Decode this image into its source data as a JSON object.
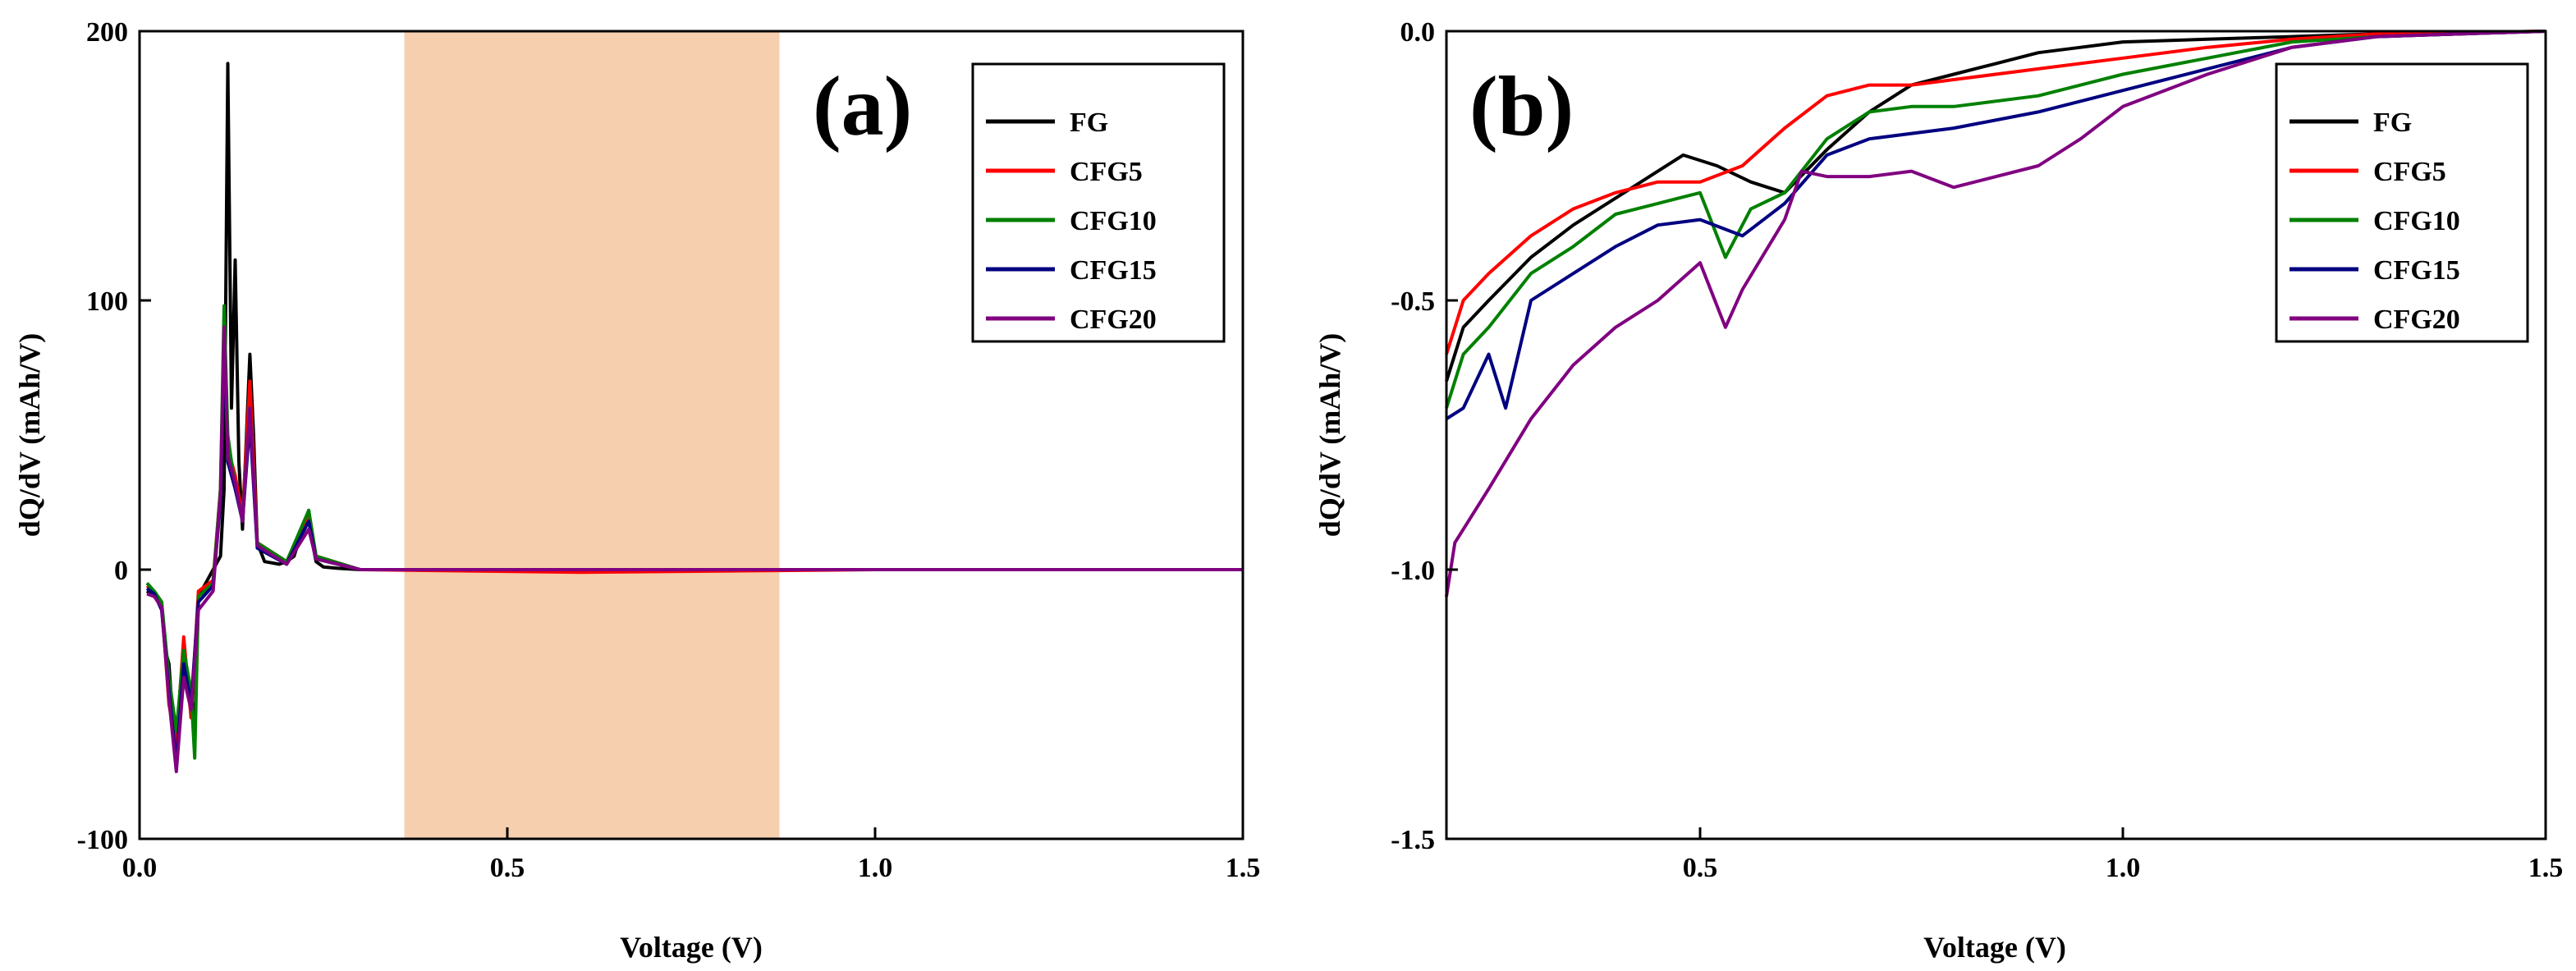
{
  "chart_data": [
    {
      "type": "line",
      "panel_label": "(a)",
      "xlabel": "Voltage (V)",
      "ylabel": "dQ/dV (mAh/V)",
      "xlim": [
        0.0,
        1.5
      ],
      "ylim": [
        -100,
        200
      ],
      "xticks": [
        0.0,
        0.5,
        1.0,
        1.5
      ],
      "xtick_labels": [
        "0.0",
        "0.5",
        "1.0",
        "1.5"
      ],
      "yticks": [
        -100,
        0,
        100,
        200
      ],
      "ytick_labels": [
        "-100",
        "0",
        "100",
        "200"
      ],
      "shaded_region": {
        "x": [
          0.36,
          0.87
        ],
        "color": "#f5cfae"
      },
      "legend": [
        "FG",
        "CFG5",
        "CFG10",
        "CFG15",
        "CFG20"
      ],
      "series": [
        {
          "name": "FG",
          "color": "#000000",
          "x": [
            0.01,
            0.02,
            0.03,
            0.035,
            0.04,
            0.045,
            0.05,
            0.055,
            0.06,
            0.065,
            0.07,
            0.075,
            0.08,
            0.09,
            0.1,
            0.11,
            0.115,
            0.12,
            0.125,
            0.13,
            0.135,
            0.14,
            0.15,
            0.155,
            0.16,
            0.17,
            0.19,
            0.2,
            0.21,
            0.225,
            0.23,
            0.235,
            0.24,
            0.25,
            0.27,
            0.3,
            0.5,
            1.0,
            1.5
          ],
          "y": [
            -8,
            -10,
            -12,
            -30,
            -35,
            -55,
            -70,
            -45,
            -30,
            -40,
            -45,
            -60,
            -10,
            -5,
            0,
            5,
            30,
            188,
            60,
            115,
            40,
            15,
            80,
            50,
            10,
            3,
            2,
            3,
            5,
            18,
            22,
            10,
            3,
            1,
            0.5,
            0,
            0,
            0,
            0
          ]
        },
        {
          "name": "CFG5",
          "color": "#ff0000",
          "x": [
            0.01,
            0.02,
            0.03,
            0.04,
            0.05,
            0.06,
            0.07,
            0.08,
            0.1,
            0.11,
            0.115,
            0.12,
            0.13,
            0.14,
            0.15,
            0.16,
            0.2,
            0.23,
            0.24,
            0.3,
            0.6,
            1.0,
            1.5
          ],
          "y": [
            -6,
            -8,
            -12,
            -50,
            -65,
            -25,
            -55,
            -8,
            -4,
            30,
            88,
            45,
            35,
            20,
            70,
            10,
            3,
            20,
            5,
            0,
            -1,
            0,
            0
          ]
        },
        {
          "name": "CFG10",
          "color": "#008000",
          "x": [
            0.01,
            0.02,
            0.03,
            0.04,
            0.05,
            0.06,
            0.07,
            0.075,
            0.08,
            0.1,
            0.11,
            0.115,
            0.12,
            0.13,
            0.14,
            0.15,
            0.16,
            0.2,
            0.23,
            0.24,
            0.3,
            1.0,
            1.5
          ],
          "y": [
            -5,
            -8,
            -12,
            -40,
            -60,
            -30,
            -45,
            -70,
            -10,
            -5,
            30,
            98,
            50,
            30,
            20,
            60,
            10,
            3,
            22,
            5,
            0,
            0,
            0
          ]
        },
        {
          "name": "CFG15",
          "color": "#000080",
          "x": [
            0.01,
            0.02,
            0.03,
            0.04,
            0.05,
            0.06,
            0.07,
            0.08,
            0.1,
            0.11,
            0.115,
            0.12,
            0.13,
            0.14,
            0.15,
            0.16,
            0.2,
            0.23,
            0.24,
            0.3,
            1.0,
            1.5
          ],
          "y": [
            -7,
            -9,
            -15,
            -45,
            -72,
            -35,
            -50,
            -12,
            -6,
            25,
            85,
            40,
            30,
            18,
            55,
            8,
            2,
            18,
            4,
            0,
            0,
            0
          ]
        },
        {
          "name": "CFG20",
          "color": "#800080",
          "x": [
            0.01,
            0.02,
            0.03,
            0.04,
            0.05,
            0.06,
            0.07,
            0.08,
            0.1,
            0.11,
            0.115,
            0.12,
            0.13,
            0.14,
            0.15,
            0.16,
            0.2,
            0.23,
            0.24,
            0.3,
            1.0,
            1.5
          ],
          "y": [
            -9,
            -10,
            -14,
            -48,
            -75,
            -40,
            -52,
            -15,
            -8,
            28,
            90,
            42,
            32,
            18,
            60,
            9,
            2,
            15,
            4,
            0,
            0,
            0
          ]
        }
      ]
    },
    {
      "type": "line",
      "panel_label": "(b)",
      "xlabel": "Voltage (V)",
      "ylabel": "dQ/dV (mAh/V)",
      "xlim": [
        0.2,
        1.5
      ],
      "ylim": [
        -1.5,
        0.0
      ],
      "xticks": [
        0.5,
        1.0,
        1.5
      ],
      "xtick_labels": [
        "0.5",
        "1.0",
        "1.5"
      ],
      "yticks": [
        -1.5,
        -1.0,
        -0.5,
        0.0
      ],
      "ytick_labels": [
        "-1.5",
        "-1.0",
        "-0.5",
        "0.0"
      ],
      "legend": [
        "FG",
        "CFG5",
        "CFG10",
        "CFG15",
        "CFG20"
      ],
      "series": [
        {
          "name": "FG",
          "color": "#000000",
          "x": [
            0.2,
            0.22,
            0.25,
            0.3,
            0.35,
            0.4,
            0.45,
            0.48,
            0.52,
            0.56,
            0.6,
            0.65,
            0.7,
            0.75,
            0.8,
            0.85,
            0.9,
            0.95,
            1.0,
            1.1,
            1.2,
            1.3,
            1.5
          ],
          "y": [
            -0.65,
            -0.55,
            -0.5,
            -0.42,
            -0.36,
            -0.31,
            -0.26,
            -0.23,
            -0.25,
            -0.28,
            -0.3,
            -0.22,
            -0.15,
            -0.1,
            -0.08,
            -0.06,
            -0.04,
            -0.03,
            -0.02,
            -0.015,
            -0.01,
            -0.005,
            0
          ]
        },
        {
          "name": "CFG5",
          "color": "#ff0000",
          "x": [
            0.2,
            0.22,
            0.25,
            0.3,
            0.35,
            0.4,
            0.45,
            0.5,
            0.55,
            0.6,
            0.65,
            0.7,
            0.75,
            0.8,
            0.9,
            1.0,
            1.1,
            1.2,
            1.3,
            1.5
          ],
          "y": [
            -0.6,
            -0.5,
            -0.45,
            -0.38,
            -0.33,
            -0.3,
            -0.28,
            -0.28,
            -0.25,
            -0.18,
            -0.12,
            -0.1,
            -0.1,
            -0.09,
            -0.07,
            -0.05,
            -0.03,
            -0.015,
            -0.005,
            0
          ]
        },
        {
          "name": "CFG10",
          "color": "#008000",
          "x": [
            0.2,
            0.22,
            0.25,
            0.3,
            0.35,
            0.4,
            0.45,
            0.5,
            0.53,
            0.56,
            0.6,
            0.65,
            0.7,
            0.75,
            0.8,
            0.9,
            1.0,
            1.1,
            1.2,
            1.3,
            1.5
          ],
          "y": [
            -0.7,
            -0.6,
            -0.55,
            -0.45,
            -0.4,
            -0.34,
            -0.32,
            -0.3,
            -0.42,
            -0.33,
            -0.3,
            -0.2,
            -0.15,
            -0.14,
            -0.14,
            -0.12,
            -0.08,
            -0.05,
            -0.02,
            -0.01,
            0
          ]
        },
        {
          "name": "CFG15",
          "color": "#000080",
          "x": [
            0.2,
            0.22,
            0.25,
            0.27,
            0.3,
            0.35,
            0.4,
            0.45,
            0.5,
            0.55,
            0.6,
            0.65,
            0.7,
            0.8,
            0.9,
            1.0,
            1.1,
            1.2,
            1.3,
            1.5
          ],
          "y": [
            -0.72,
            -0.7,
            -0.6,
            -0.7,
            -0.5,
            -0.45,
            -0.4,
            -0.36,
            -0.35,
            -0.38,
            -0.32,
            -0.23,
            -0.2,
            -0.18,
            -0.15,
            -0.11,
            -0.07,
            -0.03,
            -0.01,
            0
          ]
        },
        {
          "name": "CFG20",
          "color": "#800080",
          "x": [
            0.2,
            0.21,
            0.25,
            0.3,
            0.35,
            0.4,
            0.45,
            0.5,
            0.53,
            0.55,
            0.6,
            0.62,
            0.65,
            0.7,
            0.75,
            0.8,
            0.9,
            0.95,
            1.0,
            1.1,
            1.2,
            1.3,
            1.5
          ],
          "y": [
            -1.05,
            -0.95,
            -0.85,
            -0.72,
            -0.62,
            -0.55,
            -0.5,
            -0.43,
            -0.55,
            -0.48,
            -0.35,
            -0.26,
            -0.27,
            -0.27,
            -0.26,
            -0.29,
            -0.25,
            -0.2,
            -0.14,
            -0.08,
            -0.03,
            -0.01,
            0
          ]
        }
      ]
    }
  ]
}
